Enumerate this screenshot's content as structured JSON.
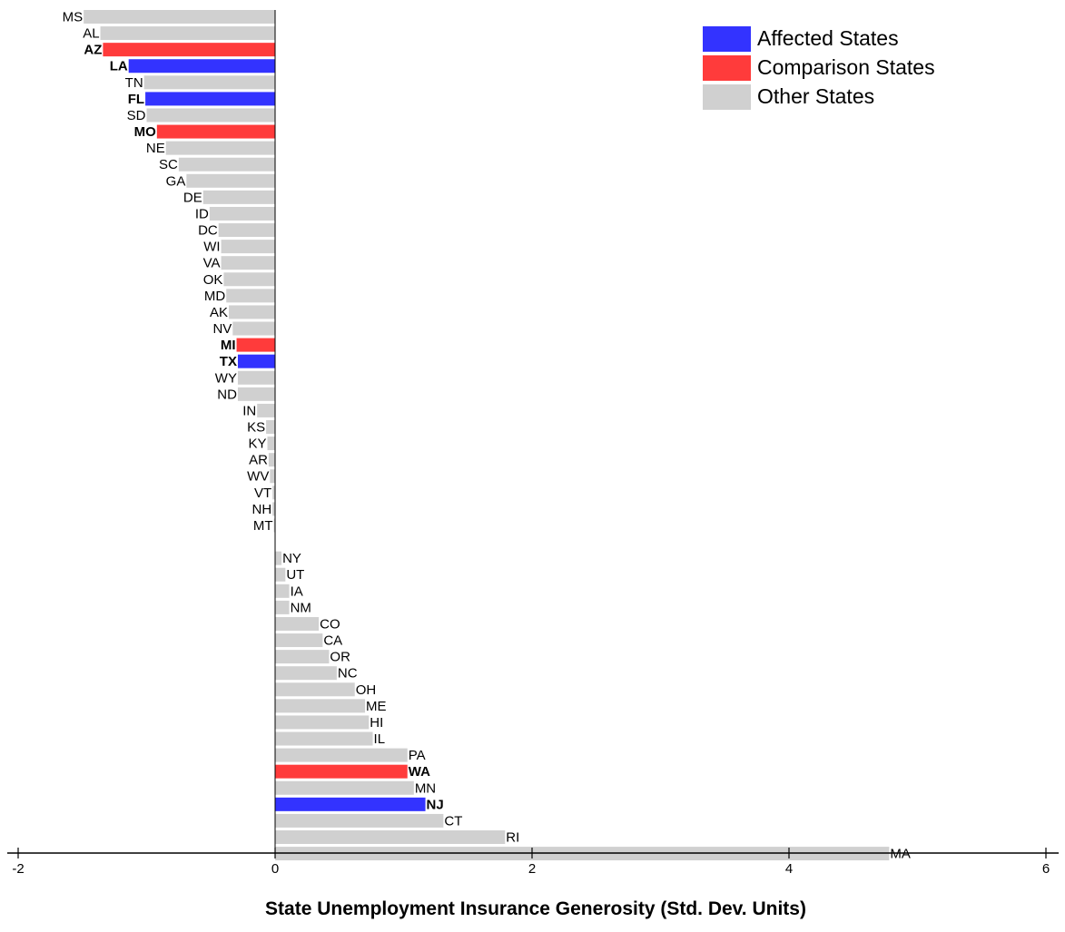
{
  "chart_data": {
    "type": "bar",
    "orientation": "horizontal",
    "xlabel": "State Unemployment Insurance Generosity (Std. Dev. Units)",
    "ylabel": "",
    "title": "",
    "xlim": [
      -2,
      6
    ],
    "xticks": [
      "-2",
      "0",
      "2",
      "4",
      "6"
    ],
    "grid": false,
    "legend_position": "top-right",
    "legend": [
      {
        "label": "Affected States",
        "color": "#3333ff"
      },
      {
        "label": "Comparison States",
        "color": "#ff3b3b"
      },
      {
        "label": "Other States",
        "color": "#d0d0d0"
      }
    ],
    "colors": {
      "affected": "#3333ff",
      "comparison": "#ff3b3b",
      "other": "#d0d0d0",
      "affected_text": "#1f1fff",
      "comparison_text": "#ff1a1a"
    },
    "bars": [
      {
        "state": "MS",
        "value": -1.49,
        "group": "other"
      },
      {
        "state": "AL",
        "value": -1.36,
        "group": "other"
      },
      {
        "state": "AZ",
        "value": -1.34,
        "group": "comparison"
      },
      {
        "state": "LA",
        "value": -1.14,
        "group": "affected"
      },
      {
        "state": "TN",
        "value": -1.02,
        "group": "other"
      },
      {
        "state": "FL",
        "value": -1.01,
        "group": "affected"
      },
      {
        "state": "SD",
        "value": -1.0,
        "group": "other"
      },
      {
        "state": "MO",
        "value": -0.92,
        "group": "comparison"
      },
      {
        "state": "NE",
        "value": -0.85,
        "group": "other"
      },
      {
        "state": "SC",
        "value": -0.75,
        "group": "other"
      },
      {
        "state": "GA",
        "value": -0.69,
        "group": "other"
      },
      {
        "state": "DE",
        "value": -0.56,
        "group": "other"
      },
      {
        "state": "ID",
        "value": -0.51,
        "group": "other"
      },
      {
        "state": "DC",
        "value": -0.44,
        "group": "other"
      },
      {
        "state": "WI",
        "value": -0.42,
        "group": "other"
      },
      {
        "state": "VA",
        "value": -0.42,
        "group": "other"
      },
      {
        "state": "OK",
        "value": -0.4,
        "group": "other"
      },
      {
        "state": "MD",
        "value": -0.38,
        "group": "other"
      },
      {
        "state": "AK",
        "value": -0.36,
        "group": "other"
      },
      {
        "state": "NV",
        "value": -0.33,
        "group": "other"
      },
      {
        "state": "MI",
        "value": -0.3,
        "group": "comparison"
      },
      {
        "state": "TX",
        "value": -0.29,
        "group": "affected"
      },
      {
        "state": "WY",
        "value": -0.29,
        "group": "other"
      },
      {
        "state": "ND",
        "value": -0.29,
        "group": "other"
      },
      {
        "state": "IN",
        "value": -0.14,
        "group": "other"
      },
      {
        "state": "KS",
        "value": -0.07,
        "group": "other"
      },
      {
        "state": "KY",
        "value": -0.06,
        "group": "other"
      },
      {
        "state": "AR",
        "value": -0.05,
        "group": "other"
      },
      {
        "state": "WV",
        "value": -0.04,
        "group": "other"
      },
      {
        "state": "VT",
        "value": -0.02,
        "group": "other"
      },
      {
        "state": "NH",
        "value": -0.02,
        "group": "other"
      },
      {
        "state": "MT",
        "value": -0.01,
        "group": "other"
      },
      {
        "state": "",
        "value": 0.0,
        "group": "none"
      },
      {
        "state": "NY",
        "value": 0.05,
        "group": "other"
      },
      {
        "state": "UT",
        "value": 0.08,
        "group": "other"
      },
      {
        "state": "IA",
        "value": 0.11,
        "group": "other"
      },
      {
        "state": "NM",
        "value": 0.11,
        "group": "other"
      },
      {
        "state": "CO",
        "value": 0.34,
        "group": "other"
      },
      {
        "state": "CA",
        "value": 0.37,
        "group": "other"
      },
      {
        "state": "OR",
        "value": 0.42,
        "group": "other"
      },
      {
        "state": "NC",
        "value": 0.48,
        "group": "other"
      },
      {
        "state": "OH",
        "value": 0.62,
        "group": "other"
      },
      {
        "state": "ME",
        "value": 0.7,
        "group": "other"
      },
      {
        "state": "HI",
        "value": 0.73,
        "group": "other"
      },
      {
        "state": "IL",
        "value": 0.76,
        "group": "other"
      },
      {
        "state": "PA",
        "value": 1.03,
        "group": "other"
      },
      {
        "state": "WA",
        "value": 1.03,
        "group": "comparison"
      },
      {
        "state": "MN",
        "value": 1.08,
        "group": "other"
      },
      {
        "state": "NJ",
        "value": 1.17,
        "group": "affected"
      },
      {
        "state": "CT",
        "value": 1.31,
        "group": "other"
      },
      {
        "state": "RI",
        "value": 1.79,
        "group": "other"
      },
      {
        "state": "MA",
        "value": 4.78,
        "group": "other"
      }
    ]
  }
}
